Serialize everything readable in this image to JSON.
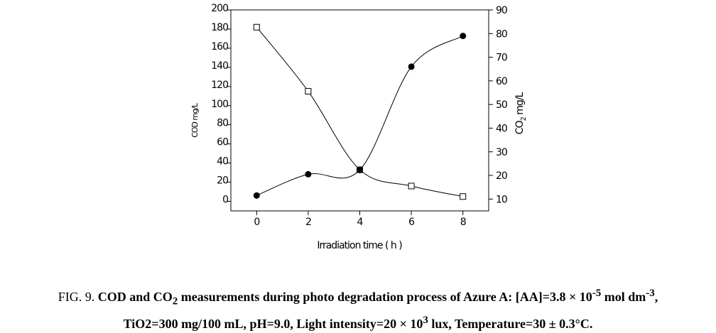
{
  "chart_data": {
    "type": "line",
    "xlabel": "Irradiation time ( h )",
    "ylabel": "COD mg/L",
    "y2label_parts": [
      "CO",
      "2",
      " mg/L"
    ],
    "x": [
      0,
      2,
      4,
      6,
      8
    ],
    "xlim": [
      -1,
      9
    ],
    "xticks": [
      0,
      2,
      4,
      6,
      8
    ],
    "ylim": [
      -10,
      200
    ],
    "yticks": [
      0,
      20,
      40,
      60,
      80,
      100,
      120,
      140,
      160,
      180,
      200
    ],
    "y2lim": [
      5,
      90
    ],
    "y2ticks": [
      10,
      20,
      30,
      40,
      50,
      60,
      70,
      80,
      90
    ],
    "series": [
      {
        "name": "COD",
        "color": "#000000",
        "marker": "square",
        "values": [
          182,
          115,
          33,
          16,
          5
        ]
      },
      {
        "name": "CO2",
        "color": "#000000",
        "marker": "circle",
        "axis": "y2",
        "values": [
          11.5,
          20.5,
          22.3,
          66,
          79
        ]
      }
    ]
  },
  "caption": {
    "line1": [
      "FIG. 9. ",
      "COD and CO",
      "2",
      " measurements during photo degradation process of Azure A: [AA]=3.8 × 10",
      "-5",
      " mol dm",
      "-3",
      ","
    ],
    "line2": [
      "TiO2=300 mg/100 mL, pH=9.0, Light intensity=20 × 10",
      "3",
      " lux, Temperature=30 ± 0.3°C."
    ]
  }
}
